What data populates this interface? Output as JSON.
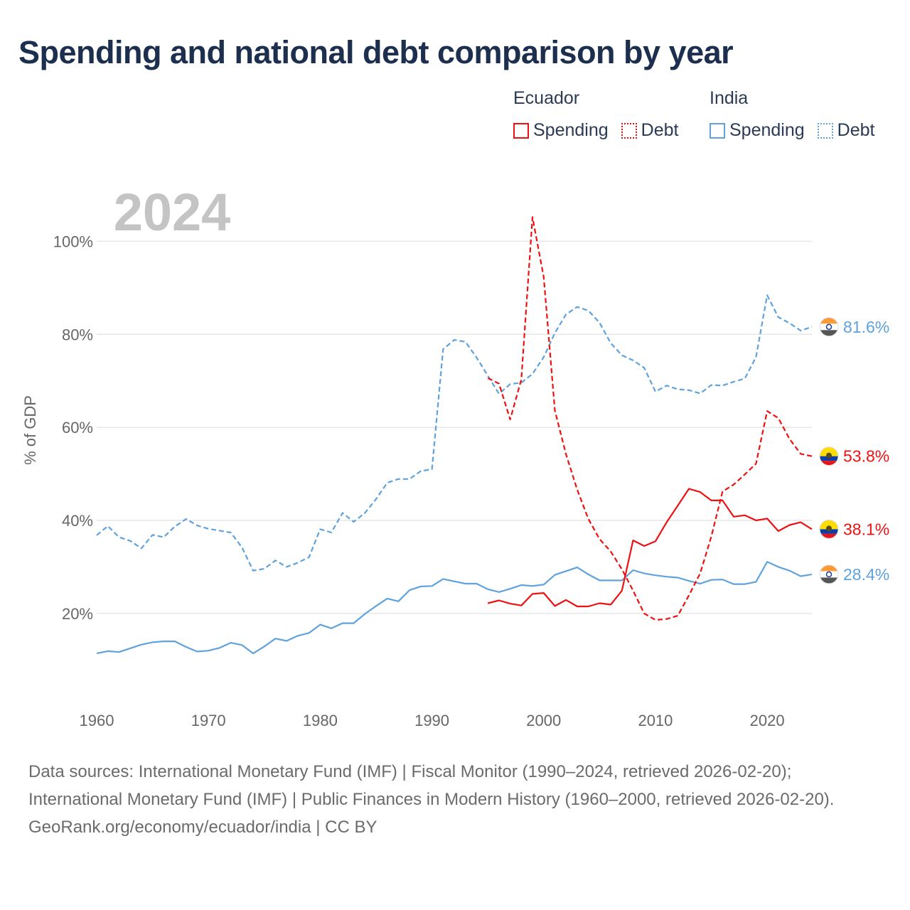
{
  "title": "Spending and national debt comparison by year",
  "legend": {
    "groups": [
      {
        "name": "Ecuador",
        "items": [
          {
            "label": "Spending",
            "style": "solid"
          },
          {
            "label": "Debt",
            "style": "dotted"
          }
        ]
      },
      {
        "name": "India",
        "items": [
          {
            "label": "Spending",
            "style": "solid"
          },
          {
            "label": "Debt",
            "style": "dotted"
          }
        ]
      }
    ]
  },
  "colors": {
    "ecuador": "#ee1111",
    "india": "#5fa2dd",
    "grid": "#e6e6e6",
    "axis_text": "#666666",
    "year_watermark": "#c4c4c4"
  },
  "chart_data": {
    "type": "line",
    "year_label": "2024",
    "ylabel": "% of GDP",
    "xlim": [
      1960,
      2024
    ],
    "ylim": [
      5,
      110
    ],
    "x_ticks": [
      1960,
      1970,
      1980,
      1990,
      2000,
      2010,
      2020
    ],
    "y_ticks": [
      {
        "value": 20,
        "label": "20%"
      },
      {
        "value": 40,
        "label": "40%"
      },
      {
        "value": 60,
        "label": "60%"
      },
      {
        "value": 80,
        "label": "80%"
      },
      {
        "value": 100,
        "label": "100%"
      }
    ],
    "series": [
      {
        "name": "India Debt",
        "country": "India",
        "measure": "Debt",
        "dash": true,
        "start_year": 1960,
        "end_label": "81.6%",
        "values": [
          36.8,
          38.8,
          36.4,
          35.6,
          34,
          36.9,
          36.4,
          38.7,
          40.3,
          38.9,
          38.2,
          37.8,
          37.4,
          34.2,
          29.2,
          29.6,
          31.4,
          30,
          30.9,
          32.1,
          38.1,
          37.4,
          41.6,
          39.7,
          41.6,
          44.6,
          48.1,
          48.9,
          48.9,
          50.6,
          51,
          76.8,
          78.8,
          78.4,
          75,
          71.1,
          67.2,
          69.3,
          69.6,
          71.5,
          75.1,
          80.3,
          84.3,
          85.9,
          85.1,
          82.5,
          78.1,
          75.5,
          74.4,
          72.8,
          67.7,
          69,
          68.2,
          68,
          67.3,
          69.1,
          69,
          69.8,
          70.5,
          75.1,
          88.4,
          83.7,
          82.4,
          80.8,
          81.6
        ]
      },
      {
        "name": "India Spending",
        "country": "India",
        "measure": "Spending",
        "dash": false,
        "start_year": 1960,
        "end_label": "28.4%",
        "values": [
          11.4,
          11.9,
          11.7,
          12.5,
          13.3,
          13.8,
          14,
          14,
          12.8,
          11.8,
          12,
          12.6,
          13.7,
          13.2,
          11.4,
          12.9,
          14.6,
          14.1,
          15.2,
          15.8,
          17.6,
          16.8,
          17.9,
          17.9,
          19.9,
          21.6,
          23.2,
          22.6,
          25,
          25.8,
          25.9,
          27.4,
          26.9,
          26.4,
          26.4,
          25.2,
          24.6,
          25.3,
          26.1,
          25.9,
          26.2,
          28.3,
          29.1,
          29.9,
          28.4,
          27.1,
          27.1,
          27.1,
          29.3,
          28.6,
          28.2,
          27.9,
          27.7,
          27,
          26.4,
          27.2,
          27.3,
          26.3,
          26.3,
          26.8,
          31.1,
          30,
          29.2,
          28,
          28.4
        ]
      },
      {
        "name": "Ecuador Debt",
        "country": "Ecuador",
        "measure": "Debt",
        "dash": true,
        "start_year": 1995,
        "end_label": "53.8%",
        "values": [
          70.6,
          69.4,
          61.7,
          70.3,
          105.2,
          92.3,
          63.6,
          54.2,
          46.6,
          40.3,
          36,
          33.3,
          29.5,
          24.9,
          20,
          18.6,
          18.8,
          19.5,
          23.9,
          28.6,
          36.5,
          46.2,
          47.7,
          49.9,
          52.2,
          63.5,
          62,
          57.5,
          54.3,
          53.8
        ]
      },
      {
        "name": "Ecuador Spending",
        "country": "Ecuador",
        "measure": "Spending",
        "dash": false,
        "start_year": 1995,
        "end_label": "38.1%",
        "values": [
          22.2,
          22.8,
          22.1,
          21.7,
          24.2,
          24.4,
          21.6,
          22.9,
          21.5,
          21.5,
          22.2,
          21.9,
          24.9,
          35.7,
          34.5,
          35.5,
          39.6,
          43.2,
          46.8,
          46.1,
          44.3,
          44.3,
          40.8,
          41.1,
          40,
          40.4,
          37.7,
          39,
          39.6,
          38.1
        ]
      }
    ]
  },
  "footer": {
    "sources": "Data sources: International Monetary Fund (IMF) | Fiscal Monitor (1990–2024, retrieved 2026-02-20); International Monetary Fund (IMF) | Public Finances in Modern History (1960–2000, retrieved 2026-02-20).",
    "credit": "GeoRank.org/economy/ecuador/india | CC BY"
  }
}
